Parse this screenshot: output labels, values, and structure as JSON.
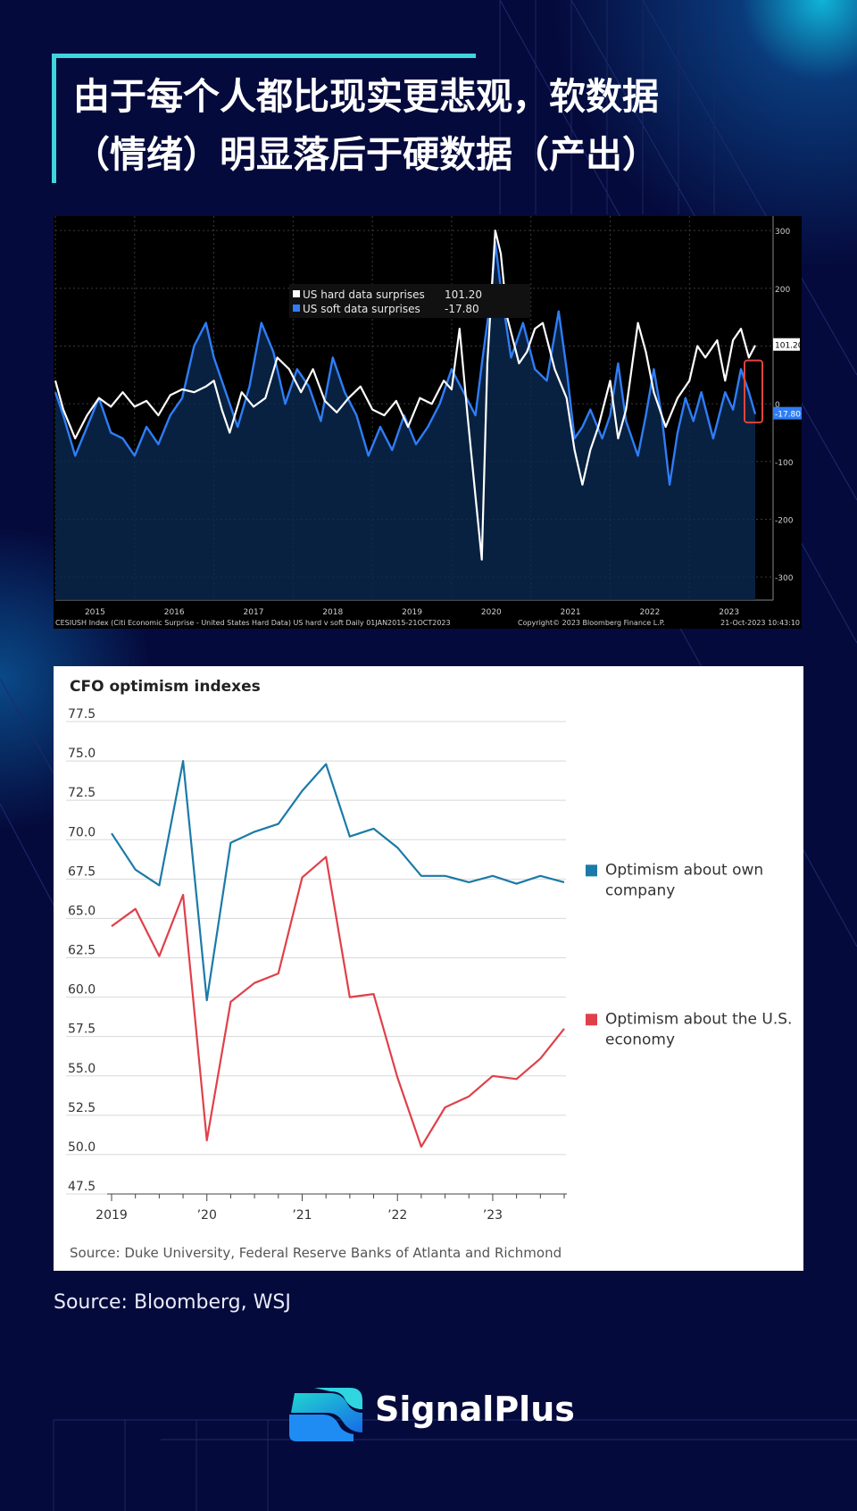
{
  "title_line1": "由于每个人都比现实更悲观，软数据",
  "title_line2": "（情绪）明显落后于硬数据（产出）",
  "source": "Source: Bloomberg, WSJ",
  "brand": "SignalPlus",
  "colors": {
    "background": "#050a3c",
    "accent": "#3fd5dd",
    "hard_line": "#ffffff",
    "soft_line": "#2f7df6",
    "highlight_box": "#e0453a",
    "own_company": "#1b7aa8",
    "us_economy": "#e0404a"
  },
  "chart_data": [
    {
      "type": "line",
      "legend": [
        {
          "name": "US hard data surprises",
          "value": "101.20"
        },
        {
          "name": "US soft data surprises",
          "value": "-17.80"
        }
      ],
      "y_ticks": [
        300,
        200,
        100,
        0,
        -100,
        -200,
        -300
      ],
      "ylim": [
        -340,
        325
      ],
      "x_ticks": [
        "2015",
        "2016",
        "2017",
        "2018",
        "2019",
        "2020",
        "2021",
        "2022",
        "2023"
      ],
      "xlim": [
        2015.0,
        2023.83
      ],
      "last_value_labels": [
        "101.20",
        "-17.80"
      ],
      "footer_left": "CESIUSH Index (Citi Economic Surprise - United States Hard Data) US hard v soft  Daily 01JAN2015-21OCT2023",
      "footer_center": "Copyright© 2023 Bloomberg Finance L.P.",
      "footer_right": "21-Oct-2023 10:43:10",
      "series": [
        {
          "name": "US hard data surprises",
          "points": [
            [
              2015.0,
              40
            ],
            [
              2015.1,
              -10
            ],
            [
              2015.25,
              -60
            ],
            [
              2015.4,
              -20
            ],
            [
              2015.55,
              10
            ],
            [
              2015.7,
              -5
            ],
            [
              2015.85,
              20
            ],
            [
              2016.0,
              -5
            ],
            [
              2016.15,
              5
            ],
            [
              2016.3,
              -20
            ],
            [
              2016.45,
              15
            ],
            [
              2016.6,
              25
            ],
            [
              2016.75,
              20
            ],
            [
              2016.9,
              30
            ],
            [
              2017.0,
              40
            ],
            [
              2017.1,
              -10
            ],
            [
              2017.2,
              -50
            ],
            [
              2017.35,
              20
            ],
            [
              2017.5,
              -5
            ],
            [
              2017.65,
              10
            ],
            [
              2017.8,
              80
            ],
            [
              2017.95,
              60
            ],
            [
              2018.1,
              20
            ],
            [
              2018.25,
              60
            ],
            [
              2018.4,
              5
            ],
            [
              2018.55,
              -15
            ],
            [
              2018.7,
              10
            ],
            [
              2018.85,
              30
            ],
            [
              2019.0,
              -10
            ],
            [
              2019.15,
              -20
            ],
            [
              2019.3,
              5
            ],
            [
              2019.45,
              -40
            ],
            [
              2019.6,
              10
            ],
            [
              2019.75,
              0
            ],
            [
              2019.9,
              40
            ],
            [
              2020.0,
              25
            ],
            [
              2020.1,
              130
            ],
            [
              2020.2,
              -20
            ],
            [
              2020.3,
              -160
            ],
            [
              2020.38,
              -270
            ],
            [
              2020.45,
              70
            ],
            [
              2020.55,
              300
            ],
            [
              2020.62,
              260
            ],
            [
              2020.7,
              150
            ],
            [
              2020.85,
              70
            ],
            [
              2020.95,
              90
            ],
            [
              2021.05,
              130
            ],
            [
              2021.15,
              140
            ],
            [
              2021.3,
              60
            ],
            [
              2021.45,
              10
            ],
            [
              2021.55,
              -80
            ],
            [
              2021.65,
              -140
            ],
            [
              2021.75,
              -80
            ],
            [
              2021.85,
              -40
            ],
            [
              2022.0,
              40
            ],
            [
              2022.1,
              -60
            ],
            [
              2022.2,
              -10
            ],
            [
              2022.35,
              140
            ],
            [
              2022.45,
              90
            ],
            [
              2022.55,
              20
            ],
            [
              2022.7,
              -40
            ],
            [
              2022.85,
              10
            ],
            [
              2023.0,
              40
            ],
            [
              2023.1,
              100
            ],
            [
              2023.2,
              80
            ],
            [
              2023.35,
              110
            ],
            [
              2023.45,
              40
            ],
            [
              2023.55,
              110
            ],
            [
              2023.65,
              130
            ],
            [
              2023.75,
              80
            ],
            [
              2023.83,
              101.2
            ]
          ]
        },
        {
          "name": "US soft data surprises",
          "points": [
            [
              2015.0,
              20
            ],
            [
              2015.1,
              -20
            ],
            [
              2015.25,
              -90
            ],
            [
              2015.4,
              -40
            ],
            [
              2015.55,
              10
            ],
            [
              2015.7,
              -50
            ],
            [
              2015.85,
              -60
            ],
            [
              2016.0,
              -90
            ],
            [
              2016.15,
              -40
            ],
            [
              2016.3,
              -70
            ],
            [
              2016.45,
              -20
            ],
            [
              2016.6,
              10
            ],
            [
              2016.75,
              100
            ],
            [
              2016.9,
              140
            ],
            [
              2017.0,
              80
            ],
            [
              2017.15,
              20
            ],
            [
              2017.3,
              -40
            ],
            [
              2017.45,
              30
            ],
            [
              2017.6,
              140
            ],
            [
              2017.75,
              90
            ],
            [
              2017.9,
              0
            ],
            [
              2018.05,
              60
            ],
            [
              2018.2,
              30
            ],
            [
              2018.35,
              -30
            ],
            [
              2018.5,
              80
            ],
            [
              2018.65,
              20
            ],
            [
              2018.8,
              -20
            ],
            [
              2018.95,
              -90
            ],
            [
              2019.1,
              -40
            ],
            [
              2019.25,
              -80
            ],
            [
              2019.4,
              -20
            ],
            [
              2019.55,
              -70
            ],
            [
              2019.7,
              -40
            ],
            [
              2019.85,
              0
            ],
            [
              2020.0,
              60
            ],
            [
              2020.15,
              20
            ],
            [
              2020.3,
              -20
            ],
            [
              2020.4,
              90
            ],
            [
              2020.5,
              190
            ],
            [
              2020.55,
              280
            ],
            [
              2020.62,
              200
            ],
            [
              2020.75,
              80
            ],
            [
              2020.9,
              140
            ],
            [
              2021.05,
              60
            ],
            [
              2021.2,
              40
            ],
            [
              2021.35,
              160
            ],
            [
              2021.45,
              60
            ],
            [
              2021.55,
              -60
            ],
            [
              2021.65,
              -40
            ],
            [
              2021.75,
              -10
            ],
            [
              2021.9,
              -60
            ],
            [
              2022.0,
              -20
            ],
            [
              2022.1,
              70
            ],
            [
              2022.2,
              -30
            ],
            [
              2022.35,
              -90
            ],
            [
              2022.45,
              -20
            ],
            [
              2022.55,
              60
            ],
            [
              2022.65,
              -20
            ],
            [
              2022.75,
              -140
            ],
            [
              2022.85,
              -50
            ],
            [
              2022.95,
              10
            ],
            [
              2023.05,
              -30
            ],
            [
              2023.15,
              20
            ],
            [
              2023.3,
              -60
            ],
            [
              2023.45,
              20
            ],
            [
              2023.55,
              -10
            ],
            [
              2023.65,
              60
            ],
            [
              2023.75,
              20
            ],
            [
              2023.83,
              -17.8
            ]
          ]
        }
      ]
    },
    {
      "type": "line",
      "title": "CFO optimism indexes",
      "y_ticks": [
        "77.5",
        "75.0",
        "72.5",
        "70.0",
        "67.5",
        "65.0",
        "62.5",
        "60.0",
        "57.5",
        "55.0",
        "52.5",
        "50.0",
        "47.5"
      ],
      "ylim": [
        47.5,
        77.5
      ],
      "x_ticks": [
        "2019",
        "’20",
        "’21",
        "’22",
        "’23"
      ],
      "x": [
        2019.0,
        2019.25,
        2019.5,
        2019.75,
        2020.0,
        2020.25,
        2020.5,
        2020.75,
        2021.0,
        2021.25,
        2021.5,
        2021.75,
        2022.0,
        2022.25,
        2022.5,
        2022.75,
        2023.0,
        2023.25,
        2023.5,
        2023.75
      ],
      "series": [
        {
          "name": "Optimism about own company",
          "values": [
            70.4,
            68.1,
            67.1,
            75.0,
            59.8,
            69.8,
            70.5,
            71.0,
            73.1,
            74.8,
            70.2,
            70.7,
            69.5,
            67.7,
            67.7,
            67.3,
            67.7,
            67.2,
            67.7,
            67.3
          ]
        },
        {
          "name": "Optimism about the U.S. economy",
          "values": [
            64.5,
            65.6,
            62.6,
            66.5,
            50.9,
            59.7,
            60.9,
            61.5,
            67.6,
            68.9,
            60.0,
            60.2,
            54.9,
            50.5,
            53.0,
            53.7,
            55.0,
            54.8,
            56.1,
            58.0
          ]
        }
      ],
      "source": "Source: Duke University, Federal Reserve Banks of Atlanta and Richmond"
    }
  ]
}
